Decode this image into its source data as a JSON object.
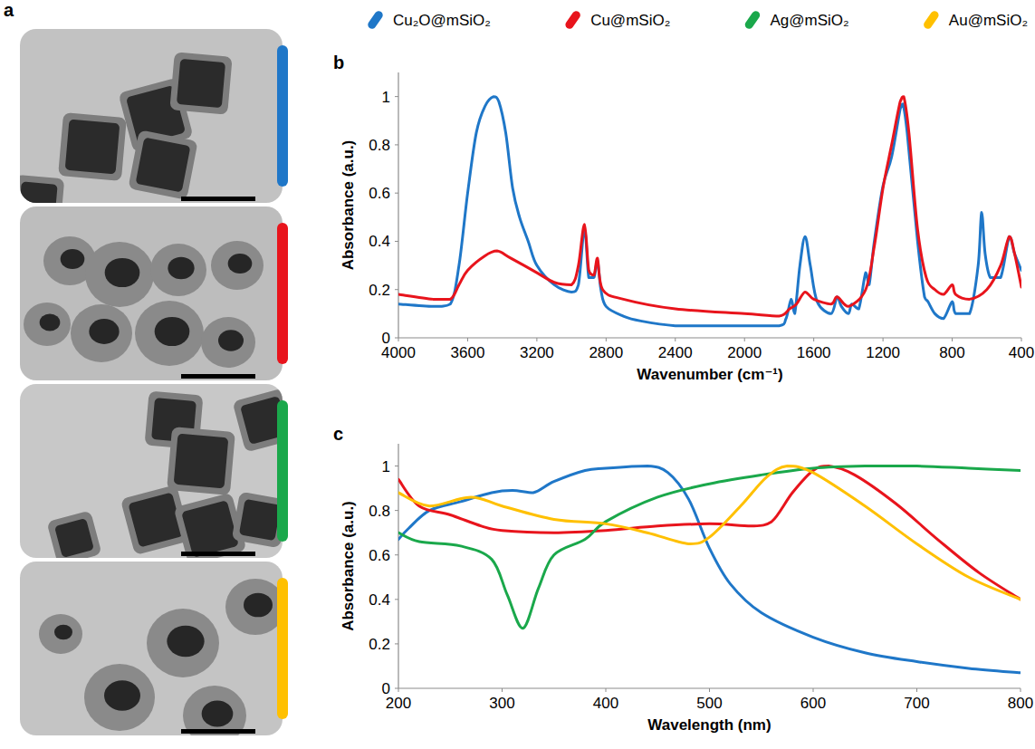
{
  "panel_a": {
    "letter": "a"
  },
  "chart_data": [
    {
      "type": "line",
      "title": "b",
      "x_label": "Wavenumber (cm⁻¹)",
      "y_label": "Absorbance  (a.u.)",
      "xlim": [
        4000,
        400
      ],
      "xticks": [
        4000,
        3600,
        3200,
        2800,
        2400,
        2000,
        1600,
        1200,
        800,
        400
      ],
      "ylim": [
        0,
        1.1
      ],
      "yticks": [
        0,
        0.2,
        0.4,
        0.6,
        0.8,
        1
      ],
      "grid": false,
      "series": [
        {
          "color": "#1f77c8",
          "x": [
            4000,
            3800,
            3700,
            3650,
            3600,
            3550,
            3500,
            3450,
            3420,
            3380,
            3340,
            3300,
            3250,
            3200,
            3100,
            3000,
            2960,
            2925,
            2900,
            2870,
            2850,
            2830,
            2800,
            2700,
            2600,
            2400,
            2200,
            2000,
            1800,
            1760,
            1730,
            1710,
            1680,
            1650,
            1620,
            1580,
            1500,
            1465,
            1440,
            1400,
            1380,
            1340,
            1300,
            1280,
            1250,
            1200,
            1150,
            1100,
            1085,
            1060,
            1000,
            960,
            940,
            900,
            850,
            800,
            780,
            700,
            650,
            630,
            610,
            580,
            520,
            470,
            440,
            400
          ],
          "values": [
            0.14,
            0.13,
            0.14,
            0.3,
            0.6,
            0.85,
            0.96,
            1.0,
            0.98,
            0.85,
            0.62,
            0.5,
            0.4,
            0.3,
            0.22,
            0.19,
            0.22,
            0.45,
            0.25,
            0.25,
            0.32,
            0.2,
            0.13,
            0.09,
            0.07,
            0.05,
            0.05,
            0.05,
            0.05,
            0.08,
            0.16,
            0.1,
            0.3,
            0.42,
            0.3,
            0.15,
            0.1,
            0.17,
            0.13,
            0.1,
            0.14,
            0.12,
            0.27,
            0.22,
            0.4,
            0.63,
            0.75,
            0.95,
            0.97,
            0.85,
            0.4,
            0.17,
            0.15,
            0.1,
            0.08,
            0.15,
            0.1,
            0.1,
            0.3,
            0.52,
            0.35,
            0.25,
            0.25,
            0.42,
            0.35,
            0.28
          ]
        },
        {
          "color": "#e8141c",
          "x": [
            4000,
            3800,
            3700,
            3650,
            3600,
            3500,
            3430,
            3350,
            3200,
            3100,
            3000,
            2960,
            2925,
            2900,
            2870,
            2850,
            2820,
            2700,
            2400,
            2000,
            1800,
            1740,
            1700,
            1650,
            1600,
            1500,
            1465,
            1400,
            1300,
            1250,
            1200,
            1150,
            1100,
            1080,
            1050,
            1000,
            950,
            900,
            850,
            800,
            780,
            700,
            600,
            520,
            470,
            440,
            400
          ],
          "values": [
            0.18,
            0.16,
            0.16,
            0.22,
            0.28,
            0.34,
            0.36,
            0.33,
            0.27,
            0.23,
            0.22,
            0.3,
            0.47,
            0.28,
            0.26,
            0.33,
            0.2,
            0.16,
            0.12,
            0.1,
            0.09,
            0.12,
            0.14,
            0.19,
            0.16,
            0.14,
            0.17,
            0.13,
            0.2,
            0.38,
            0.62,
            0.8,
            0.98,
            1.0,
            0.85,
            0.45,
            0.25,
            0.2,
            0.18,
            0.22,
            0.18,
            0.16,
            0.2,
            0.3,
            0.42,
            0.35,
            0.21
          ]
        }
      ]
    },
    {
      "type": "line",
      "title": "c",
      "x_label": "Wavelength (nm)",
      "y_label": "Absorbance  (a.u.)",
      "xlim": [
        200,
        800
      ],
      "xticks": [
        200,
        300,
        400,
        500,
        600,
        700,
        800
      ],
      "ylim": [
        0,
        1.1
      ],
      "yticks": [
        0,
        0.2,
        0.4,
        0.6,
        0.8,
        1
      ],
      "grid": false,
      "legend": "top",
      "series": [
        {
          "name": "Cu₂O@mSiO₂",
          "color": "#1f77c8",
          "x": [
            200,
            210,
            230,
            260,
            290,
            310,
            330,
            350,
            380,
            400,
            440,
            460,
            480,
            500,
            520,
            550,
            600,
            650,
            700,
            750,
            800
          ],
          "values": [
            0.67,
            0.72,
            0.8,
            0.84,
            0.88,
            0.89,
            0.88,
            0.93,
            0.98,
            0.99,
            1.0,
            0.97,
            0.85,
            0.63,
            0.47,
            0.34,
            0.23,
            0.16,
            0.12,
            0.09,
            0.07
          ]
        },
        {
          "name": "Cu@mSiO₂",
          "color": "#e8141c",
          "x": [
            200,
            220,
            250,
            280,
            300,
            350,
            400,
            450,
            500,
            540,
            560,
            580,
            600,
            615,
            640,
            680,
            720,
            760,
            800
          ],
          "values": [
            0.94,
            0.82,
            0.78,
            0.73,
            0.71,
            0.7,
            0.71,
            0.73,
            0.74,
            0.73,
            0.75,
            0.88,
            0.98,
            1.0,
            0.96,
            0.83,
            0.67,
            0.52,
            0.4
          ]
        },
        {
          "name": "Ag@mSiO₂",
          "color": "#1aa84b",
          "x": [
            200,
            220,
            260,
            290,
            305,
            320,
            335,
            350,
            380,
            400,
            450,
            500,
            550,
            600,
            650,
            700,
            750,
            800
          ],
          "values": [
            0.7,
            0.66,
            0.64,
            0.58,
            0.42,
            0.27,
            0.45,
            0.6,
            0.67,
            0.75,
            0.86,
            0.92,
            0.96,
            0.99,
            1.0,
            1.0,
            0.99,
            0.98
          ]
        },
        {
          "name": "Au@mSiO₂",
          "color": "#ffc000",
          "x": [
            200,
            230,
            270,
            300,
            350,
            400,
            440,
            480,
            500,
            530,
            555,
            575,
            600,
            650,
            700,
            750,
            800
          ],
          "values": [
            0.88,
            0.82,
            0.86,
            0.82,
            0.76,
            0.74,
            0.7,
            0.65,
            0.68,
            0.82,
            0.95,
            1.0,
            0.97,
            0.82,
            0.65,
            0.5,
            0.4
          ]
        }
      ]
    }
  ]
}
